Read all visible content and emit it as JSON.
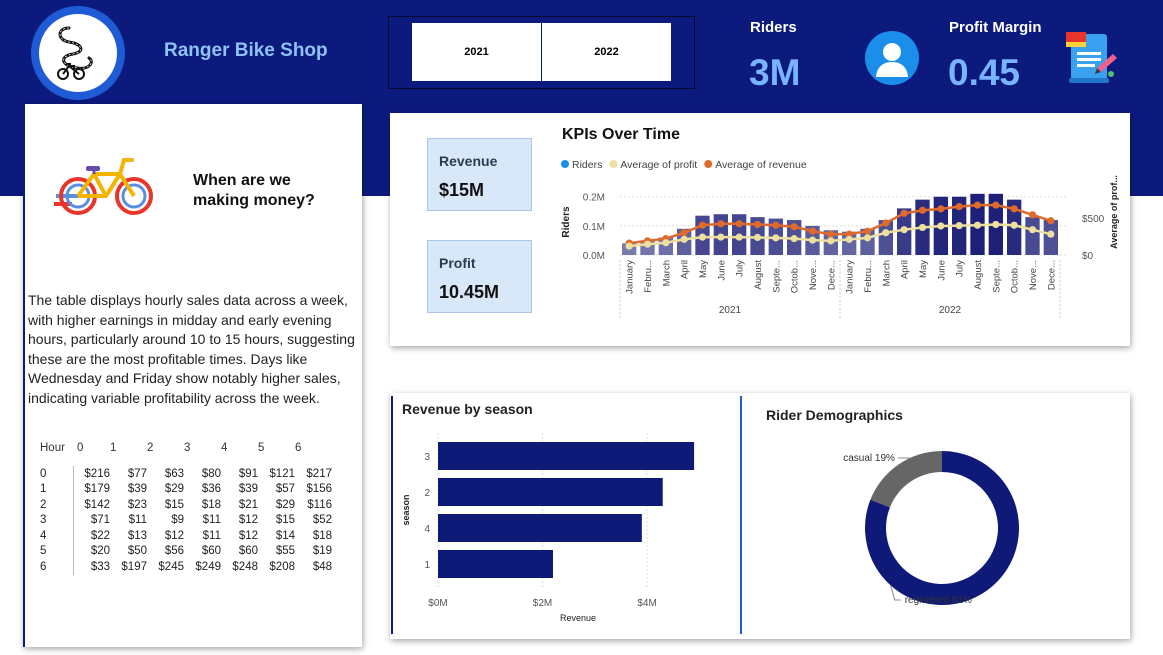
{
  "header": {
    "shop_name": "Ranger Bike Shop",
    "year_filters": [
      "2021",
      "2022"
    ],
    "riders": {
      "label": "Riders",
      "value": "3M"
    },
    "profit_margin": {
      "label": "Profit Margin",
      "value": "0.45"
    },
    "icons": {
      "logo": "winding-road-bike-logo-icon",
      "user": "user-icon",
      "report": "report-scroll-icon"
    }
  },
  "left_panel": {
    "bike_icon": "bicycle-icon",
    "question": "When are we making money?",
    "description": "The table displays hourly sales data across a week, with higher earnings in midday and early evening hours, particularly around 10 to 15 hours, suggesting these are the most profitable times. Days like Wednesday and Friday show notably higher sales, indicating variable profitability across the week.",
    "matrix": {
      "corner": "Hour",
      "columns": [
        "0",
        "1",
        "2",
        "3",
        "4",
        "5",
        "6"
      ],
      "rows": [
        {
          "hour": "0",
          "values": [
            "$216",
            "$77",
            "$63",
            "$80",
            "$91",
            "$121",
            "$217"
          ]
        },
        {
          "hour": "1",
          "values": [
            "$179",
            "$39",
            "$29",
            "$36",
            "$39",
            "$57",
            "$156"
          ]
        },
        {
          "hour": "2",
          "values": [
            "$142",
            "$23",
            "$15",
            "$18",
            "$21",
            "$29",
            "$116"
          ]
        },
        {
          "hour": "3",
          "values": [
            "$71",
            "$11",
            "$9",
            "$11",
            "$12",
            "$15",
            "$52"
          ]
        },
        {
          "hour": "4",
          "values": [
            "$22",
            "$13",
            "$12",
            "$11",
            "$12",
            "$14",
            "$18"
          ]
        },
        {
          "hour": "5",
          "values": [
            "$20",
            "$50",
            "$56",
            "$60",
            "$60",
            "$55",
            "$19"
          ]
        },
        {
          "hour": "6",
          "values": [
            "$33",
            "$197",
            "$245",
            "$249",
            "$248",
            "$208",
            "$48"
          ]
        }
      ]
    }
  },
  "kpi_cards": {
    "revenue": {
      "label": "Revenue",
      "value": "$15M"
    },
    "profit": {
      "label": "Profit",
      "value": "10.45M"
    }
  },
  "chart_data": [
    {
      "type": "bar",
      "title": "KPIs Over Time",
      "legend": {
        "position": "top-left",
        "entries": [
          {
            "name": "Riders",
            "color": "#1a8eea"
          },
          {
            "name": "Average of profit",
            "color": "#ecdf9f"
          },
          {
            "name": "Average of revenue",
            "color": "#e06a2c"
          }
        ]
      },
      "ylabel": "Riders",
      "y2label": "Average of prof...",
      "y_ticks": [
        "0.0M",
        "0.1M",
        "0.2M"
      ],
      "y2_ticks": [
        "$0",
        "$500"
      ],
      "ylim": [
        0,
        0.23
      ],
      "y2lim": [
        0,
        900
      ],
      "groups": [
        "2021",
        "2022"
      ],
      "categories": [
        "January",
        "Febru...",
        "March",
        "April",
        "May",
        "June",
        "July",
        "August",
        "Septe...",
        "Octob...",
        "Nove...",
        "Dece...",
        "January",
        "Febru...",
        "March",
        "April",
        "May",
        "June",
        "July",
        "August",
        "Septe...",
        "Octob...",
        "Nove...",
        "Dece..."
      ],
      "series": [
        {
          "name": "Riders",
          "kind": "bar",
          "values": [
            0.04,
            0.05,
            0.06,
            0.09,
            0.135,
            0.14,
            0.14,
            0.13,
            0.125,
            0.12,
            0.1,
            0.085,
            0.08,
            0.09,
            0.12,
            0.16,
            0.19,
            0.2,
            0.2,
            0.21,
            0.21,
            0.19,
            0.13,
            0.12
          ]
        },
        {
          "name": "Average of profit",
          "kind": "line",
          "values": [
            120,
            145,
            165,
            210,
            240,
            240,
            240,
            235,
            230,
            220,
            200,
            190,
            210,
            230,
            300,
            340,
            370,
            390,
            395,
            400,
            410,
            400,
            340,
            280
          ]
        },
        {
          "name": "Average of revenue",
          "kind": "line",
          "values": [
            160,
            190,
            220,
            300,
            400,
            420,
            420,
            410,
            400,
            380,
            320,
            280,
            280,
            320,
            430,
            560,
            600,
            620,
            650,
            670,
            670,
            620,
            540,
            460
          ]
        }
      ]
    },
    {
      "type": "bar",
      "orientation": "horizontal",
      "title": "Revenue by season",
      "xlabel": "Revenue",
      "ylabel": "season",
      "categories": [
        "3",
        "2",
        "4",
        "1"
      ],
      "values": [
        4.9,
        4.3,
        3.9,
        2.2
      ],
      "x_ticks": [
        "$0M",
        "$2M",
        "$4M"
      ],
      "xlim": [
        0,
        5.3
      ],
      "color": "#0f1a78"
    },
    {
      "type": "pie",
      "title": "Rider Demographics",
      "donut": true,
      "slices": [
        {
          "label": "registered 81%",
          "value": 81,
          "color": "#0f1a78"
        },
        {
          "label": "casual 19%",
          "value": 19,
          "color": "#666666"
        }
      ]
    }
  ]
}
